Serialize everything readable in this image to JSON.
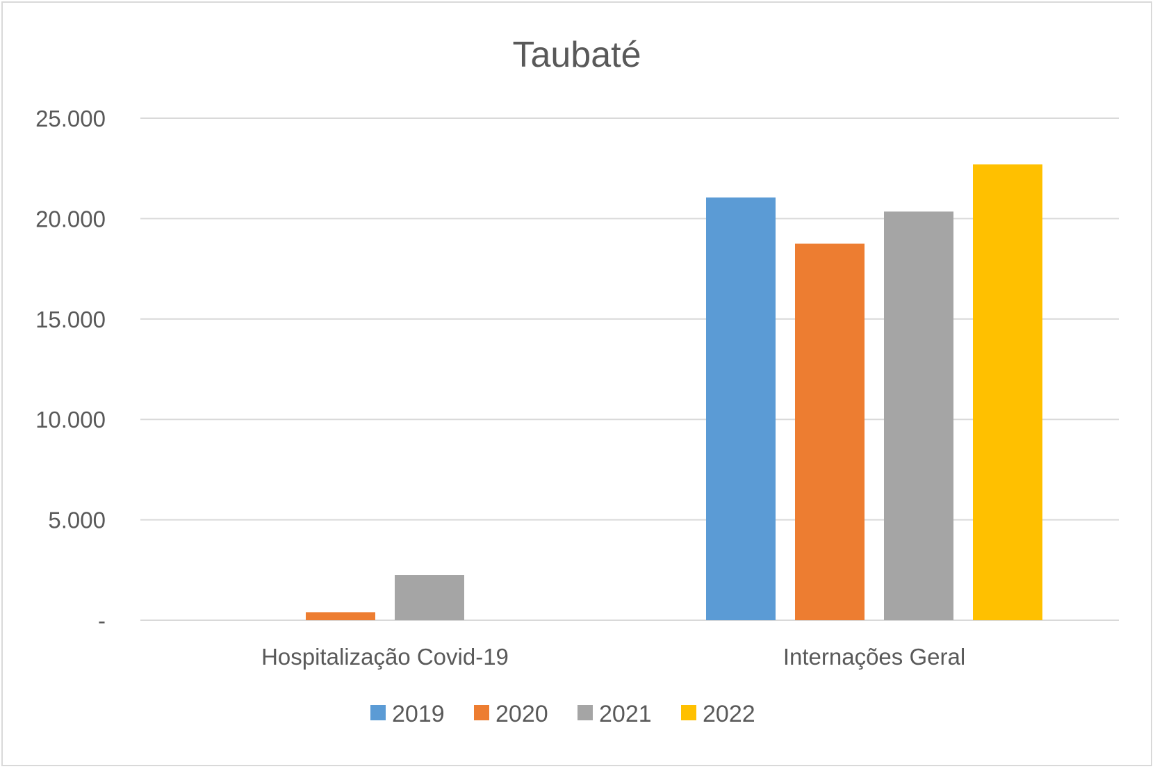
{
  "chart_data": {
    "type": "bar",
    "title": "Taubaté",
    "xlabel": "",
    "ylabel": "",
    "categories": [
      "Hospitalização Covid-19",
      "Internações Geral"
    ],
    "ylim": [
      0,
      25000
    ],
    "yticks": [
      {
        "value": 0,
        "label": "-"
      },
      {
        "value": 5000,
        "label": "5.000"
      },
      {
        "value": 10000,
        "label": "10.000"
      },
      {
        "value": 15000,
        "label": "15.000"
      },
      {
        "value": 20000,
        "label": "20.000"
      },
      {
        "value": 25000,
        "label": "25.000"
      }
    ],
    "grid": true,
    "legend_position": "bottom",
    "series": [
      {
        "name": "2019",
        "color": "#5B9BD5",
        "values": [
          0,
          21050
        ]
      },
      {
        "name": "2020",
        "color": "#ED7D31",
        "values": [
          400,
          18750
        ]
      },
      {
        "name": "2021",
        "color": "#A5A5A5",
        "values": [
          2250,
          20350
        ]
      },
      {
        "name": "2022",
        "color": "#FFC000",
        "values": [
          0,
          22700
        ]
      }
    ]
  }
}
